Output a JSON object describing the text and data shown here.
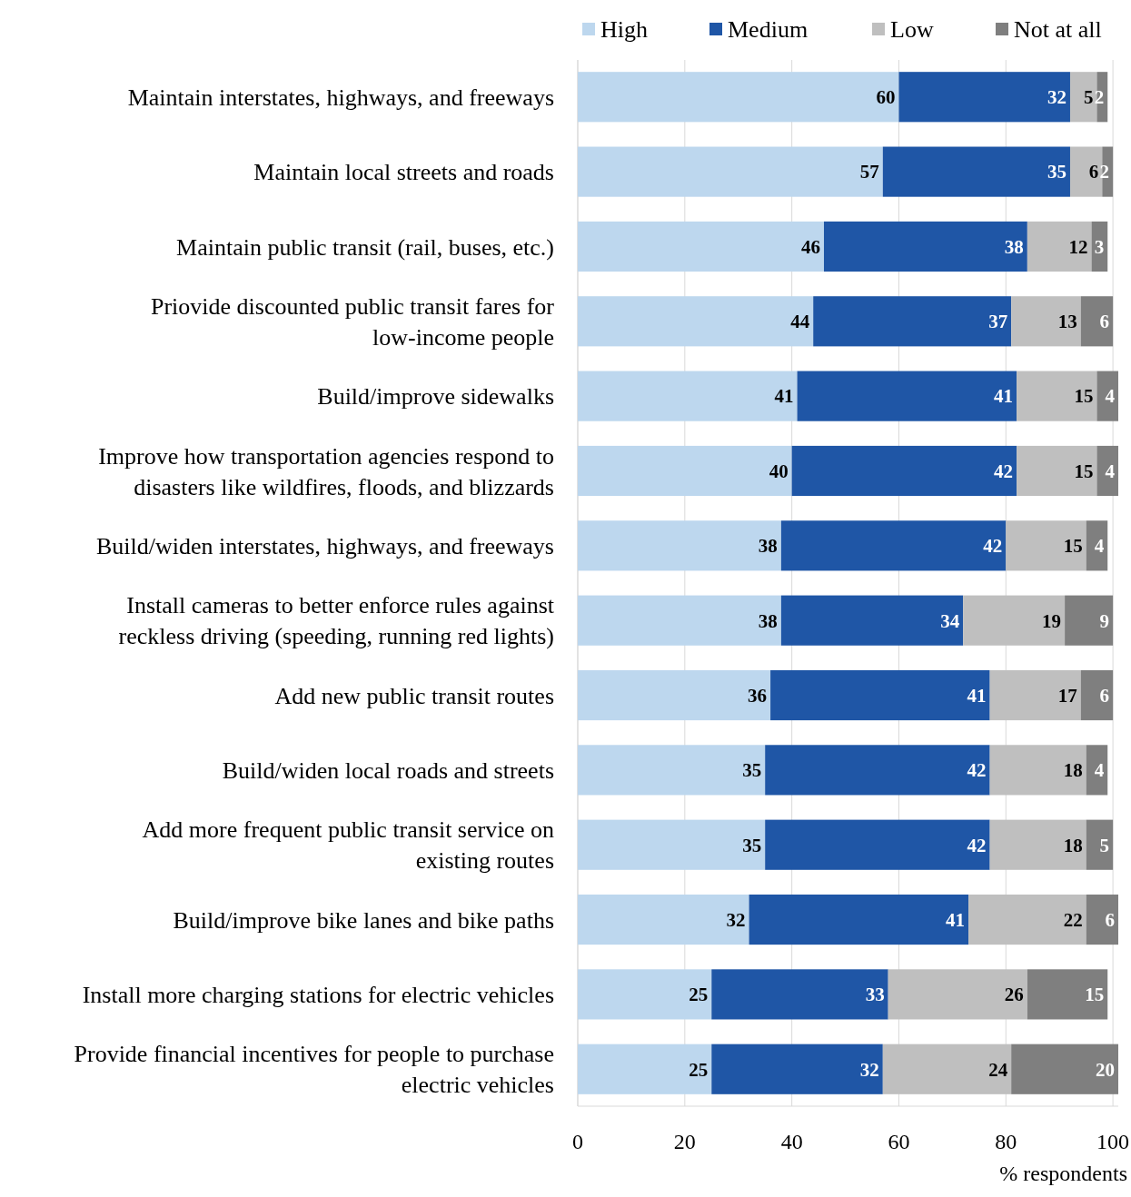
{
  "chart_data": {
    "type": "bar",
    "orientation": "horizontal",
    "stacked": true,
    "data_labels": true,
    "grid": "x",
    "legend": "top",
    "xlabel": "% respondents",
    "xlim": [
      0,
      101
    ],
    "xticks": [
      0,
      20,
      40,
      60,
      80,
      100
    ],
    "categories": [
      "Maintain interstates, highways, and freeways",
      "Maintain local streets and roads",
      "Maintain public transit (rail, buses, etc.)",
      "Priovide discounted public transit fares for low-income people",
      "Build/improve sidewalks",
      "Improve how transportation agencies respond to disasters like wildfires, floods, and blizzards",
      "Build/widen interstates, highways, and freeways",
      "Install cameras to better enforce rules against reckless driving (speeding, running red lights)",
      "Add new public transit routes",
      "Build/widen local roads and streets",
      "Add more frequent public transit service on existing routes",
      "Build/improve bike lanes and bike paths",
      "Install more charging stations for electric vehicles",
      "Provide financial incentives for people to purchase electric vehicles"
    ],
    "series": [
      {
        "name": "High",
        "color": "#bdd7ee",
        "values": [
          60,
          57,
          46,
          44,
          41,
          40,
          38,
          38,
          36,
          35,
          35,
          32,
          25,
          25
        ]
      },
      {
        "name": "Medium",
        "color": "#1f56a6",
        "values": [
          32,
          35,
          38,
          37,
          41,
          42,
          42,
          34,
          41,
          42,
          42,
          41,
          33,
          32
        ]
      },
      {
        "name": "Low",
        "color": "#bfbfbf",
        "values": [
          5,
          6,
          12,
          13,
          15,
          15,
          15,
          19,
          17,
          18,
          18,
          22,
          26,
          24
        ]
      },
      {
        "name": "Not at all",
        "color": "#7f7f7f",
        "values": [
          2,
          2,
          3,
          6,
          4,
          4,
          4,
          9,
          6,
          4,
          5,
          6,
          15,
          20
        ]
      }
    ]
  }
}
